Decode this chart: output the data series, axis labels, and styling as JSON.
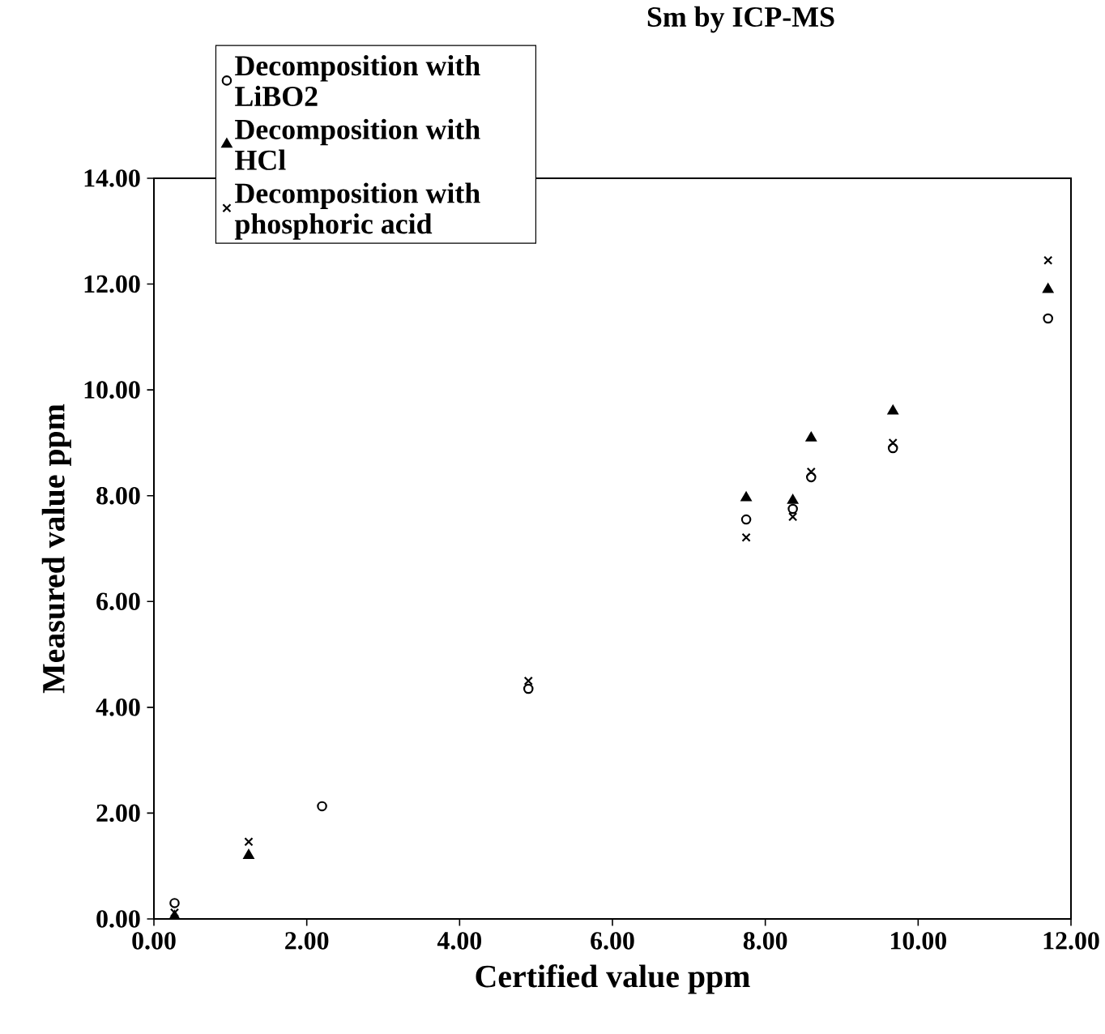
{
  "chart_data": {
    "type": "scatter",
    "title": "Sm by ICP-MS",
    "xlabel": "Certified value ppm",
    "ylabel": "Measured value ppm",
    "xlim": [
      0,
      12
    ],
    "ylim": [
      0,
      14
    ],
    "xticks": [
      {
        "value": 0,
        "label": "0.00"
      },
      {
        "value": 2,
        "label": "2.00"
      },
      {
        "value": 4,
        "label": "4.00"
      },
      {
        "value": 6,
        "label": "6.00"
      },
      {
        "value": 8,
        "label": "8.00"
      },
      {
        "value": 10,
        "label": "10.00"
      },
      {
        "value": 12,
        "label": "12.00"
      }
    ],
    "yticks": [
      {
        "value": 0,
        "label": "0.00"
      },
      {
        "value": 2,
        "label": "2.00"
      },
      {
        "value": 4,
        "label": "4.00"
      },
      {
        "value": 6,
        "label": "6.00"
      },
      {
        "value": 8,
        "label": "8.00"
      },
      {
        "value": 10,
        "label": "10.00"
      },
      {
        "value": 12,
        "label": "12.00"
      },
      {
        "value": 14,
        "label": "14.00"
      }
    ],
    "legend": "top left",
    "grid": false,
    "x": [
      0.27,
      1.24,
      2.2,
      4.9,
      7.75,
      8.36,
      8.6,
      9.67,
      11.7
    ],
    "series": [
      {
        "name": "Decomposition with LiBO2",
        "color": "#000000",
        "marker": "circle",
        "values": [
          0.3,
          null,
          2.13,
          4.35,
          7.55,
          7.75,
          8.35,
          8.9,
          11.35
        ]
      },
      {
        "name": "Decomposition with HCl",
        "color": "#000000",
        "marker": "triangle",
        "values": [
          0.05,
          1.2,
          null,
          null,
          7.96,
          7.91,
          9.09,
          9.6,
          11.9
        ]
      },
      {
        "name": "Decomposition with phosphoric acid",
        "color": "#000000",
        "marker": "cross",
        "values": [
          0.12,
          1.46,
          null,
          4.5,
          7.21,
          7.6,
          8.45,
          9.0,
          12.45
        ]
      }
    ]
  }
}
